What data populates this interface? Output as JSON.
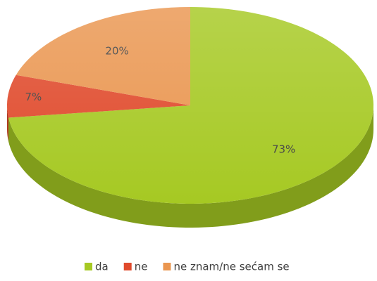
{
  "chart_data": {
    "type": "pie3d",
    "categories": [
      "da",
      "ne",
      "ne znam/ne sećam se"
    ],
    "values": [
      73,
      7,
      20
    ],
    "value_labels": [
      "73%",
      "7%",
      "20%"
    ],
    "colors": [
      "#a6c923",
      "#e04a2c",
      "#ea9650"
    ],
    "legend": "bottom"
  }
}
